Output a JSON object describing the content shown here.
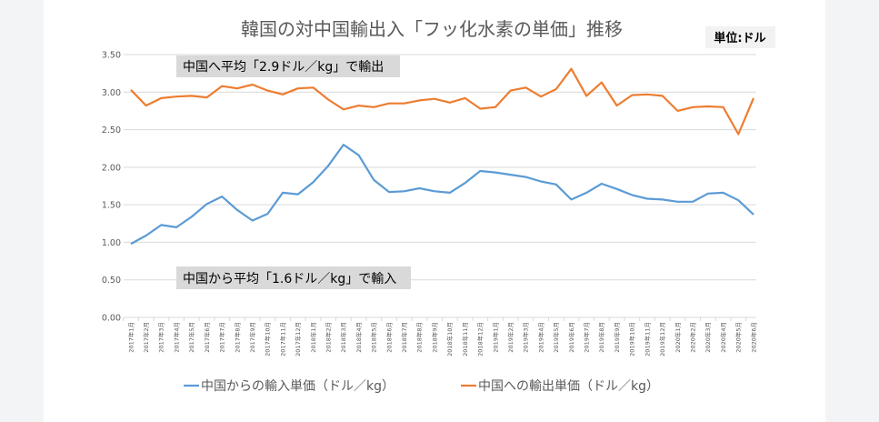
{
  "chart_data": {
    "type": "line",
    "title": "韓国の対中国輸出入「フッ化水素の単価」推移",
    "unit_label": "単位:ドル",
    "xlabel": "",
    "ylabel": "",
    "ylim": [
      0,
      3.5
    ],
    "yticks": [
      "0.00",
      "0.50",
      "1.00",
      "1.50",
      "2.00",
      "2.50",
      "3.00",
      "3.50"
    ],
    "grid": true,
    "legend_position": "bottom",
    "categories": [
      "2017年1月",
      "2017年2月",
      "2017年3月",
      "2017年4月",
      "2017年5月",
      "2017年6月",
      "2017年7月",
      "2017年8月",
      "2017年9月",
      "2017年10月",
      "2017年11月",
      "2017年12月",
      "2018年1月",
      "2018年2月",
      "2018年3月",
      "2018年4月",
      "2018年5月",
      "2018年6月",
      "2018年7月",
      "2018年8月",
      "2018年9月",
      "2018年10月",
      "2018年11月",
      "2018年12月",
      "2019年1月",
      "2019年2月",
      "2019年3月",
      "2019年4月",
      "2019年5月",
      "2019年6月",
      "2019年7月",
      "2019年8月",
      "2019年9月",
      "2019年10月",
      "2019年11月",
      "2019年12月",
      "2020年1月",
      "2020年2月",
      "2020年3月",
      "2020年4月",
      "2020年5月",
      "2020年6月"
    ],
    "series": [
      {
        "name": "中国からの輸入単価（ドル／kg）",
        "color": "#5b9bd5",
        "values": [
          0.98,
          1.09,
          1.23,
          1.2,
          1.34,
          1.51,
          1.61,
          1.43,
          1.29,
          1.38,
          1.66,
          1.64,
          1.8,
          2.02,
          2.3,
          2.16,
          1.83,
          1.67,
          1.68,
          1.72,
          1.68,
          1.66,
          1.79,
          1.95,
          1.93,
          1.9,
          1.87,
          1.81,
          1.77,
          1.57,
          1.66,
          1.78,
          1.71,
          1.63,
          1.58,
          1.57,
          1.54,
          1.54,
          1.65,
          1.66,
          1.56,
          1.37
        ]
      },
      {
        "name": "中国への輸出単価（ドル／kg）",
        "color": "#ed7d31",
        "values": [
          3.03,
          2.82,
          2.92,
          2.94,
          2.95,
          2.93,
          3.08,
          3.05,
          3.1,
          3.02,
          2.97,
          3.05,
          3.06,
          2.9,
          2.77,
          2.82,
          2.8,
          2.85,
          2.85,
          2.89,
          2.91,
          2.86,
          2.92,
          2.78,
          2.8,
          3.02,
          3.06,
          2.94,
          3.04,
          3.31,
          2.95,
          3.13,
          2.82,
          2.96,
          2.97,
          2.95,
          2.75,
          2.8,
          2.81,
          2.8,
          2.44,
          2.92
        ]
      }
    ],
    "annotations": [
      {
        "text": "中国へ平均「2.9ドル／kg」で輸出"
      },
      {
        "text": "中国から平均「1.6ドル／kg」で輸入"
      }
    ]
  }
}
